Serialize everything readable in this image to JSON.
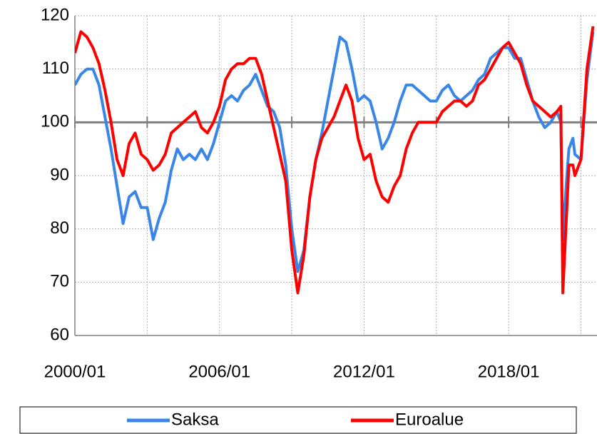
{
  "chart_data": {
    "type": "line",
    "x": [
      "2000/01",
      "2000/04",
      "2000/07",
      "2000/10",
      "2001/01",
      "2001/04",
      "2001/07",
      "2001/10",
      "2002/01",
      "2002/04",
      "2002/07",
      "2002/10",
      "2003/01",
      "2003/04",
      "2003/07",
      "2003/10",
      "2004/01",
      "2004/04",
      "2004/07",
      "2004/10",
      "2005/01",
      "2005/04",
      "2005/07",
      "2005/10",
      "2006/01",
      "2006/04",
      "2006/07",
      "2006/10",
      "2007/01",
      "2007/04",
      "2007/07",
      "2007/10",
      "2008/01",
      "2008/04",
      "2008/07",
      "2008/10",
      "2009/01",
      "2009/04",
      "2009/07",
      "2009/10",
      "2010/01",
      "2010/04",
      "2010/07",
      "2010/10",
      "2011/01",
      "2011/04",
      "2011/07",
      "2011/10",
      "2012/01",
      "2012/04",
      "2012/07",
      "2012/10",
      "2013/01",
      "2013/04",
      "2013/07",
      "2013/10",
      "2014/01",
      "2014/04",
      "2014/07",
      "2014/10",
      "2015/01",
      "2015/04",
      "2015/07",
      "2015/10",
      "2016/01",
      "2016/04",
      "2016/07",
      "2016/10",
      "2017/01",
      "2017/04",
      "2017/07",
      "2017/10",
      "2018/01",
      "2018/04",
      "2018/07",
      "2018/10",
      "2019/01",
      "2019/04",
      "2019/07",
      "2019/10",
      "2020/01",
      "2020/03",
      "2020/04",
      "2020/06",
      "2020/07",
      "2020/09",
      "2020/10",
      "2021/01",
      "2021/04",
      "2021/07"
    ],
    "series": [
      {
        "name": "Saksa",
        "color": "#3a86e8",
        "values": [
          107,
          109,
          110,
          110,
          107,
          101,
          95,
          88,
          81,
          86,
          87,
          84,
          84,
          78,
          82,
          85,
          91,
          95,
          93,
          94,
          93,
          95,
          93,
          96,
          100,
          104,
          105,
          104,
          106,
          107,
          109,
          106,
          103,
          102,
          99,
          92,
          80,
          72,
          76,
          86,
          93,
          98,
          104,
          110,
          116,
          115,
          110,
          104,
          105,
          104,
          100,
          95,
          97,
          100,
          104,
          107,
          107,
          106,
          105,
          104,
          104,
          106,
          107,
          105,
          104,
          105,
          106,
          108,
          109,
          112,
          113,
          114,
          114,
          112,
          112,
          108,
          104,
          101,
          99,
          100,
          102,
          100,
          78,
          90,
          95,
          97,
          94,
          93,
          108,
          117
        ]
      },
      {
        "name": "Euroalue",
        "color": "#ff0000",
        "values": [
          113,
          117,
          116,
          114,
          111,
          106,
          100,
          93,
          90,
          96,
          98,
          94,
          93,
          91,
          92,
          94,
          98,
          99,
          100,
          101,
          102,
          99,
          98,
          100,
          103,
          108,
          110,
          111,
          111,
          112,
          112,
          109,
          104,
          99,
          94,
          89,
          76,
          68,
          75,
          86,
          93,
          97,
          99,
          101,
          104,
          107,
          104,
          97,
          93,
          94,
          89,
          86,
          85,
          88,
          90,
          95,
          98,
          100,
          100,
          100,
          100,
          102,
          103,
          104,
          104,
          103,
          104,
          107,
          108,
          110,
          112,
          114,
          115,
          113,
          111,
          107,
          104,
          103,
          102,
          101,
          102,
          103,
          68,
          84,
          92,
          92,
          90,
          93,
          110,
          118
        ]
      }
    ],
    "xlim": [
      "2000/01",
      "2021/09"
    ],
    "xticks": [
      "2000/01",
      "2006/01",
      "2012/01",
      "2018/01"
    ],
    "xgrid": [
      "2000/01",
      "2003/01",
      "2006/01",
      "2009/01",
      "2012/01",
      "2015/01",
      "2018/01",
      "2021/01"
    ],
    "ylim": [
      60,
      120
    ],
    "yticks": [
      60,
      70,
      80,
      90,
      100,
      110,
      120
    ],
    "reference_line": 100,
    "grid": true,
    "legend": "bottom"
  }
}
